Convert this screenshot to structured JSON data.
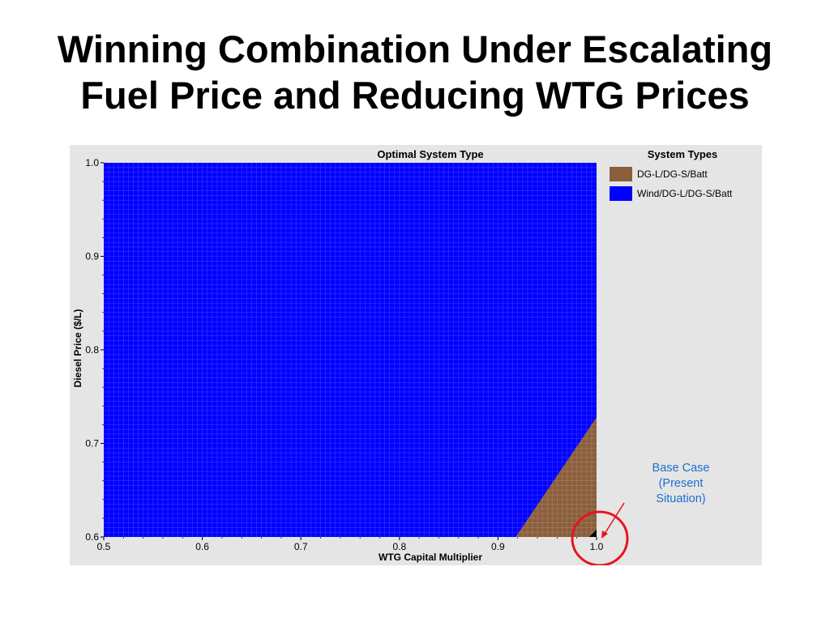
{
  "title": {
    "line1": "Winning Combination Under Escalating",
    "line2": "Fuel Price and Reducing WTG Prices"
  },
  "chart_data": {
    "type": "heatmap",
    "title": "Optimal System Type",
    "xlabel": "WTG Capital Multiplier",
    "ylabel": "Diesel Price ($/L)",
    "xlim": [
      0.5,
      1.0
    ],
    "ylim": [
      0.6,
      1.0
    ],
    "x_ticks": [
      "0.5",
      "0.6",
      "0.7",
      "0.8",
      "0.9",
      "1.0"
    ],
    "y_ticks": [
      "0.6",
      "0.7",
      "0.8",
      "0.9",
      "1.0"
    ],
    "grid": true,
    "legend": {
      "title": "System Types",
      "position": "right",
      "items": [
        {
          "label": "DG-L/DG-S/Batt",
          "color": "#8b5e3c"
        },
        {
          "label": "Wind/DG-L/DG-S/Batt",
          "color": "#0000ff"
        }
      ]
    },
    "colors": {
      "wind": "#0000ff",
      "diesel": "#8b5e3c",
      "panel": "#e5e5e5"
    },
    "region_boundary": {
      "description_units": "WTG Capital Multiplier vs Diesel Price ($/L)",
      "points": [
        [
          0.918,
          0.6
        ],
        [
          1.0,
          0.728
        ]
      ],
      "below_right": "DG-L/DG-S/Batt",
      "elsewhere": "Wind/DG-L/DG-S/Batt"
    },
    "base_case": {
      "x": 1.0,
      "y": 0.6,
      "label": [
        "Base Case",
        "(Present",
        "Situation)"
      ]
    }
  },
  "annotation": {
    "line1": "Base Case",
    "line2": "(Present",
    "line3": "Situation)",
    "color": "#1a6fd0"
  },
  "highlight_color": "#e8141c"
}
